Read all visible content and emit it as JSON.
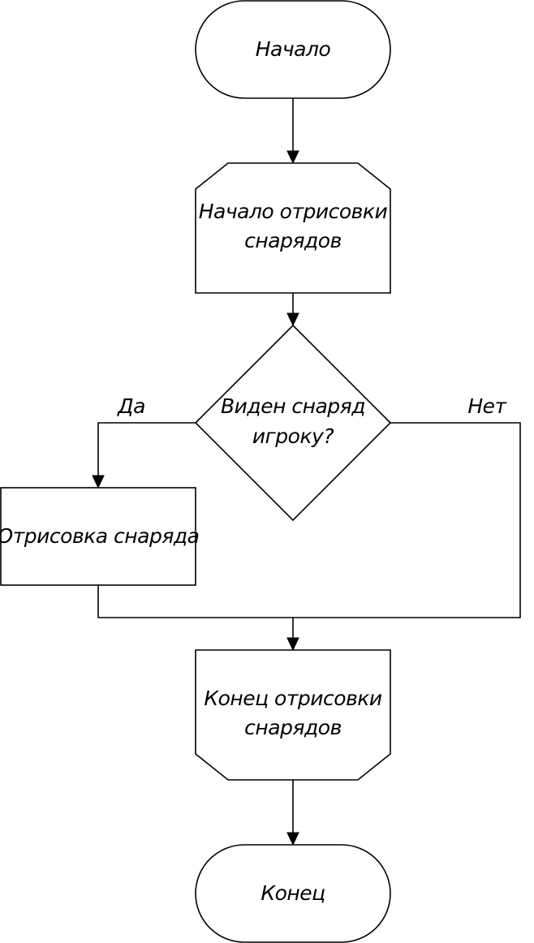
{
  "nodes": {
    "start": "Начало",
    "loop_begin": [
      "Начало отрисовки",
      "снарядов"
    ],
    "decision": [
      "Виден снаряд",
      "игроку?"
    ],
    "draw": "Отрисовка снаряда",
    "loop_end": [
      "Конец отрисовки",
      "снарядов"
    ],
    "end": "Конец"
  },
  "edges": {
    "yes_label": "Да",
    "no_label": "Нет"
  },
  "colors": {
    "stroke": "#000000",
    "fill": "#ffffff"
  }
}
